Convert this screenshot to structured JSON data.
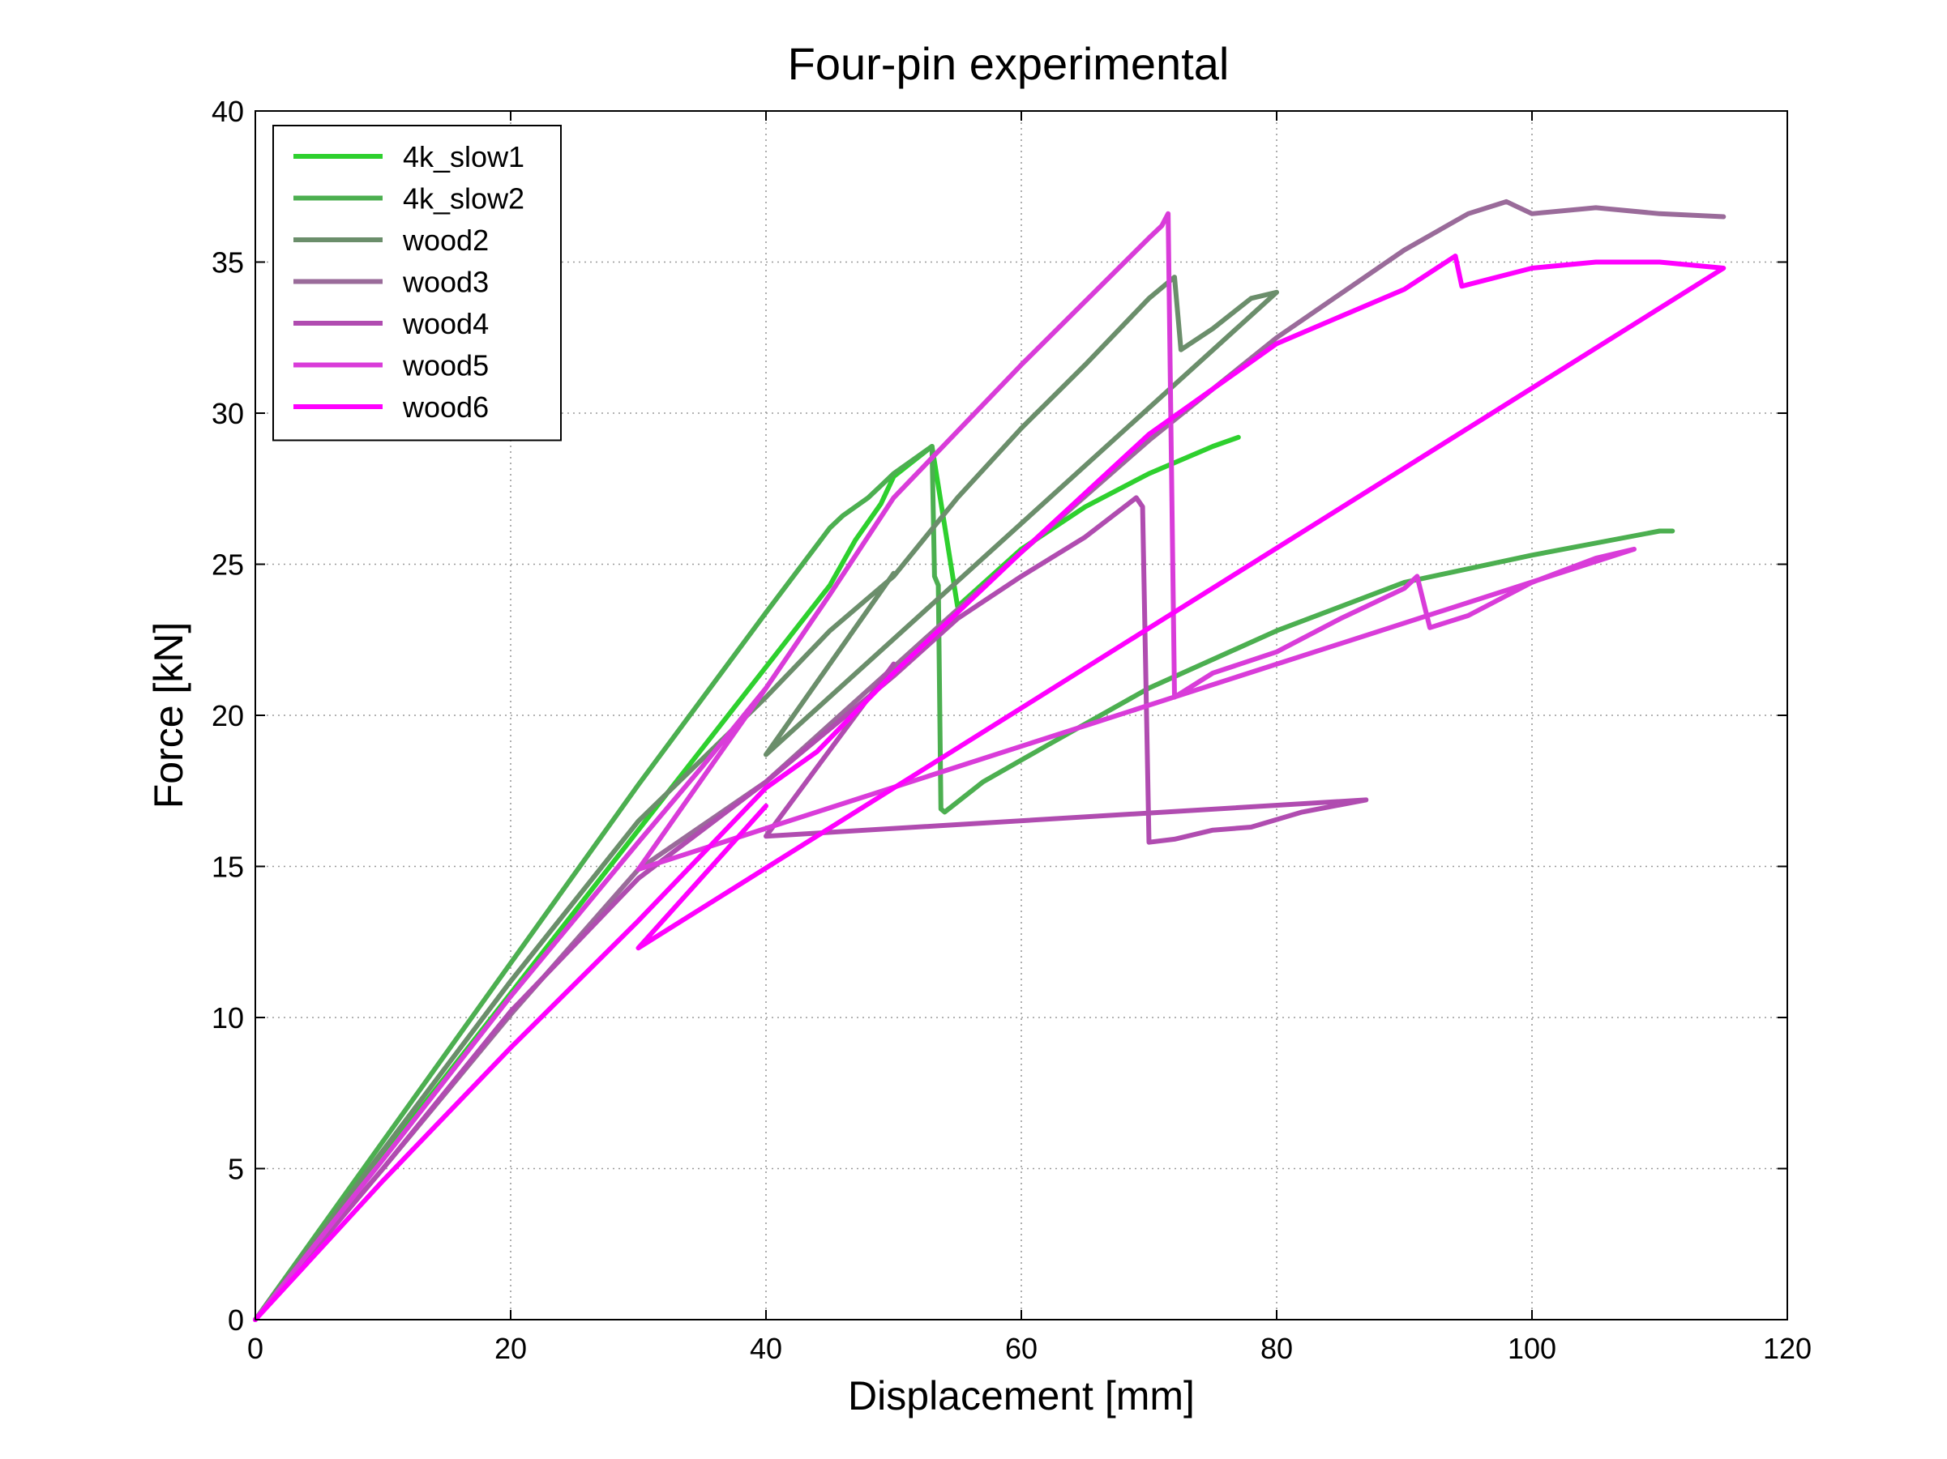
{
  "chart_data": {
    "type": "line",
    "title": "Four-pin experimental",
    "xlabel": "Displacement [mm]",
    "ylabel": "Force [kN]",
    "xlim": [
      0,
      120
    ],
    "ylim": [
      0,
      40
    ],
    "xticks": [
      0,
      20,
      40,
      60,
      80,
      100,
      120
    ],
    "yticks": [
      0,
      5,
      10,
      15,
      20,
      25,
      30,
      35,
      40
    ],
    "grid": true,
    "legend_position": "top-left",
    "series": [
      {
        "name": "4k_slow1",
        "color": "#2ed02e",
        "points": [
          [
            0,
            0
          ],
          [
            10,
            5.4
          ],
          [
            20,
            10.8
          ],
          [
            30,
            16.2
          ],
          [
            40,
            21.6
          ],
          [
            45,
            24.3
          ],
          [
            47,
            25.8
          ],
          [
            49,
            27.0
          ],
          [
            50,
            27.9
          ],
          [
            53,
            28.9
          ],
          [
            55,
            23.6
          ],
          [
            60,
            25.5
          ],
          [
            65,
            26.9
          ],
          [
            70,
            28.0
          ],
          [
            75,
            28.9
          ],
          [
            77,
            29.2
          ]
        ]
      },
      {
        "name": "4k_slow2",
        "color": "#4caf50",
        "points": [
          [
            0,
            0
          ],
          [
            10,
            5.9
          ],
          [
            20,
            11.8
          ],
          [
            30,
            17.7
          ],
          [
            40,
            23.4
          ],
          [
            45,
            26.2
          ],
          [
            46,
            26.6
          ],
          [
            47,
            26.9
          ],
          [
            48,
            27.2
          ],
          [
            49,
            27.6
          ],
          [
            50,
            28.0
          ],
          [
            52,
            28.6
          ],
          [
            53,
            28.9
          ],
          [
            53.2,
            24.6
          ],
          [
            53.5,
            24.3
          ],
          [
            53.7,
            16.9
          ],
          [
            54,
            16.8
          ],
          [
            57,
            17.8
          ],
          [
            62,
            19.0
          ],
          [
            70,
            20.9
          ],
          [
            80,
            22.8
          ],
          [
            90,
            24.4
          ],
          [
            100,
            25.3
          ],
          [
            110,
            26.1
          ],
          [
            111,
            26.1
          ]
        ]
      },
      {
        "name": "wood2",
        "color": "#6b8e6b",
        "points": [
          [
            0,
            0
          ],
          [
            10,
            5.6
          ],
          [
            20,
            11.2
          ],
          [
            30,
            16.5
          ],
          [
            40,
            20.6
          ],
          [
            45,
            22.8
          ],
          [
            50,
            24.6
          ],
          [
            55,
            27.2
          ],
          [
            60,
            29.5
          ],
          [
            65,
            31.6
          ],
          [
            70,
            33.8
          ],
          [
            72,
            34.5
          ],
          [
            72.5,
            32.1
          ],
          [
            75,
            32.8
          ],
          [
            78,
            33.8
          ],
          [
            80,
            34.0
          ],
          [
            40,
            18.7
          ],
          [
            50,
            24.7
          ]
        ]
      },
      {
        "name": "wood3",
        "color": "#9a6b9a",
        "points": [
          [
            0,
            0
          ],
          [
            10,
            5.0
          ],
          [
            20,
            10.1
          ],
          [
            30,
            14.9
          ],
          [
            40,
            17.8
          ],
          [
            50,
            21.6
          ],
          [
            60,
            25.4
          ],
          [
            70,
            29.1
          ],
          [
            80,
            32.5
          ],
          [
            90,
            35.4
          ],
          [
            95,
            36.6
          ],
          [
            98,
            37.0
          ],
          [
            99,
            36.8
          ],
          [
            100,
            36.6
          ],
          [
            105,
            36.8
          ],
          [
            110,
            36.6
          ],
          [
            115,
            36.5
          ]
        ]
      },
      {
        "name": "wood4",
        "color": "#b04cb0",
        "points": [
          [
            0,
            0
          ],
          [
            10,
            5.0
          ],
          [
            20,
            10.2
          ],
          [
            30,
            14.6
          ],
          [
            40,
            17.8
          ],
          [
            50,
            21.3
          ],
          [
            55,
            23.2
          ],
          [
            60,
            24.6
          ],
          [
            65,
            25.9
          ],
          [
            69,
            27.2
          ],
          [
            69.5,
            26.9
          ],
          [
            70,
            15.8
          ],
          [
            72,
            15.9
          ],
          [
            75,
            16.2
          ],
          [
            78,
            16.3
          ],
          [
            82,
            16.8
          ],
          [
            87,
            17.2
          ],
          [
            40,
            16.0
          ],
          [
            50,
            21.7
          ]
        ]
      },
      {
        "name": "wood5",
        "color": "#d93cd9",
        "points": [
          [
            0,
            0
          ],
          [
            10,
            5.3
          ],
          [
            20,
            10.7
          ],
          [
            30,
            15.8
          ],
          [
            35,
            18.3
          ],
          [
            40,
            20.9
          ],
          [
            45,
            24.0
          ],
          [
            50,
            27.2
          ],
          [
            60,
            31.6
          ],
          [
            70,
            35.8
          ],
          [
            71,
            36.2
          ],
          [
            71.5,
            36.6
          ],
          [
            72,
            20.6
          ],
          [
            75,
            21.4
          ],
          [
            80,
            22.1
          ],
          [
            85,
            23.2
          ],
          [
            90,
            24.2
          ],
          [
            91,
            24.6
          ],
          [
            92,
            22.9
          ],
          [
            95,
            23.3
          ],
          [
            100,
            24.4
          ],
          [
            105,
            25.2
          ],
          [
            108,
            25.5
          ],
          [
            30,
            14.9
          ],
          [
            40,
            20.9
          ]
        ]
      },
      {
        "name": "wood6",
        "color": "#ff00ff",
        "points": [
          [
            0,
            0
          ],
          [
            10,
            4.6
          ],
          [
            20,
            9.0
          ],
          [
            30,
            13.2
          ],
          [
            40,
            17.6
          ],
          [
            44,
            18.8
          ],
          [
            50,
            21.4
          ],
          [
            60,
            25.4
          ],
          [
            70,
            29.3
          ],
          [
            80,
            32.3
          ],
          [
            90,
            34.1
          ],
          [
            94,
            35.2
          ],
          [
            94.5,
            34.2
          ],
          [
            100,
            34.8
          ],
          [
            105,
            35.0
          ],
          [
            110,
            35.0
          ],
          [
            115,
            34.8
          ],
          [
            30,
            12.3
          ],
          [
            40,
            17.0
          ]
        ]
      }
    ]
  }
}
